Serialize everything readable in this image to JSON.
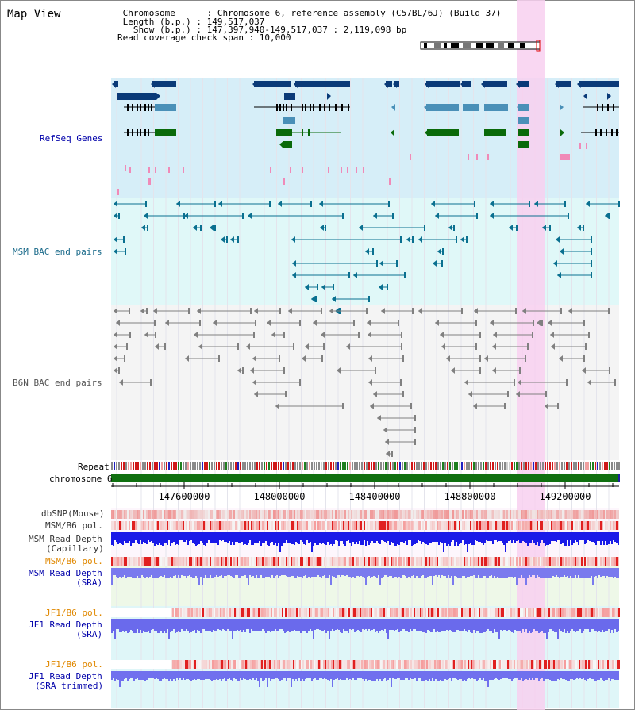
{
  "header": {
    "title": "Map View",
    "info_lines": [
      " Chromosome      : Chromosome 6, reference assembly (C57BL/6J) (Build 37)",
      " Length (b.p.) : 149,517,037",
      "   Show (b.p.) : 147,397,940-149,517,037 : 2,119,098 bp",
      "Read coverage check span : 10,000"
    ]
  },
  "tracks": {
    "refseq": "RefSeq Genes",
    "msm_bac": "MSM BAC end pairs",
    "b6n_bac": "B6N BAC end pairs",
    "repeat": "Repeat",
    "chromosome": "chromosome 6",
    "dbsnp": "dbSNP(Mouse)",
    "msm_pol1": "MSM/B6 pol.",
    "msm_depth_cap_1": "MSM Read Depth",
    "msm_depth_cap_2": "(Capillary)",
    "msm_pol2": "MSM/B6 pol.",
    "msm_depth_sra_1": "MSM Read Depth",
    "msm_depth_sra_2": "(SRA)",
    "jf1_pol1": "JF1/B6 pol.",
    "jf1_depth_sra_1": "JF1 Read Depth",
    "jf1_depth_sra_2": "(SRA)",
    "jf1_pol2": "JF1/B6 pol.",
    "jf1_depth_trim_1": "JF1 Read Depth",
    "jf1_depth_trim_2": "(SRA trimmed)"
  },
  "axis": {
    "ticks": [
      "147600000",
      "148000000",
      "148400000",
      "148800000",
      "149200000"
    ]
  },
  "colors": {
    "refseq_bg": "#d6eef8",
    "msm_bg": "#e0f8f8",
    "b6n_bg": "#f4f4f4",
    "highlight": "#f8d0f0",
    "gene_dark": "#0a3a78",
    "gene_mid": "#4a90b8",
    "gene_green": "#0a6a0a",
    "msm_bac": "#0a7090",
    "b6n_bac": "#808080",
    "chromosome": "#107010",
    "label_blue": "#0000aa",
    "label_teal": "#1a6a8a",
    "label_orange": "#e08800"
  }
}
